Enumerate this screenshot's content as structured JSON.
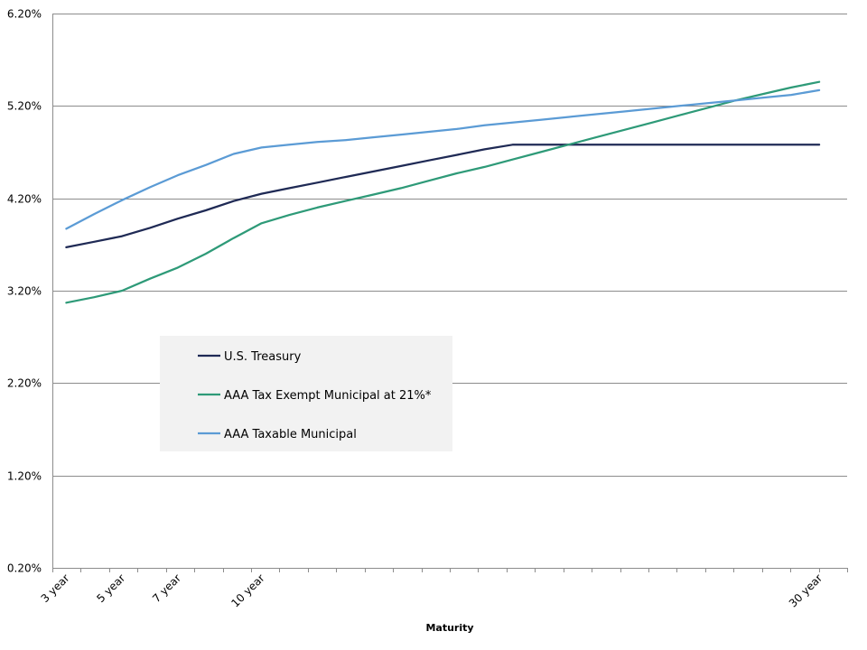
{
  "chart_data": {
    "type": "line",
    "title": "",
    "xlabel": "Maturity",
    "ylabel": "",
    "x_tick_labels": [
      {
        "x": 3,
        "label": "3 year"
      },
      {
        "x": 5,
        "label": "5 year"
      },
      {
        "x": 7,
        "label": "7 year"
      },
      {
        "x": 10,
        "label": "10 year"
      },
      {
        "x": 30,
        "label": "30 year"
      }
    ],
    "xlim": [
      2.5,
      31
    ],
    "ylim": [
      0.2,
      6.2
    ],
    "y_ticks": [
      0.2,
      1.2,
      2.2,
      3.2,
      4.2,
      5.2,
      6.2
    ],
    "y_tick_labels": [
      "0.20%",
      "1.20%",
      "2.20%",
      "3.20%",
      "4.20%",
      "5.20%",
      "6.20%"
    ],
    "grid": "horizontal",
    "legend_position": "center-left",
    "x": [
      3,
      4,
      5,
      6,
      7,
      8,
      9,
      10,
      11,
      12,
      13,
      14,
      15,
      16,
      17,
      18,
      19,
      20,
      21,
      22,
      23,
      24,
      25,
      26,
      27,
      28,
      29,
      30
    ],
    "series": [
      {
        "name": "U.S. Treasury",
        "color": "#1f2a55",
        "values": [
          3.67,
          3.73,
          3.79,
          3.88,
          3.98,
          4.07,
          4.17,
          4.25,
          4.31,
          4.37,
          4.43,
          4.49,
          4.55,
          4.61,
          4.67,
          4.73,
          4.78,
          4.78,
          4.78,
          4.78,
          4.78,
          4.78,
          4.78,
          4.78,
          4.78,
          4.78,
          4.78,
          4.78
        ]
      },
      {
        "name": "AAA Tax Exempt Municipal at 21%*",
        "color": "#2e9a78",
        "values": [
          3.07,
          3.13,
          3.2,
          3.33,
          3.45,
          3.6,
          3.77,
          3.93,
          4.02,
          4.1,
          4.17,
          4.24,
          4.31,
          4.39,
          4.47,
          4.54,
          4.62,
          4.7,
          4.78,
          4.86,
          4.94,
          5.02,
          5.1,
          5.18,
          5.26,
          5.33,
          5.4,
          5.46
        ]
      },
      {
        "name": "AAA Taxable Municipal",
        "color": "#5b9bd5",
        "values": [
          3.87,
          4.03,
          4.18,
          4.32,
          4.45,
          4.56,
          4.68,
          4.75,
          4.78,
          4.81,
          4.83,
          4.86,
          4.89,
          4.92,
          4.95,
          4.99,
          5.02,
          5.05,
          5.08,
          5.11,
          5.14,
          5.17,
          5.2,
          5.23,
          5.26,
          5.29,
          5.32,
          5.37
        ]
      }
    ]
  }
}
